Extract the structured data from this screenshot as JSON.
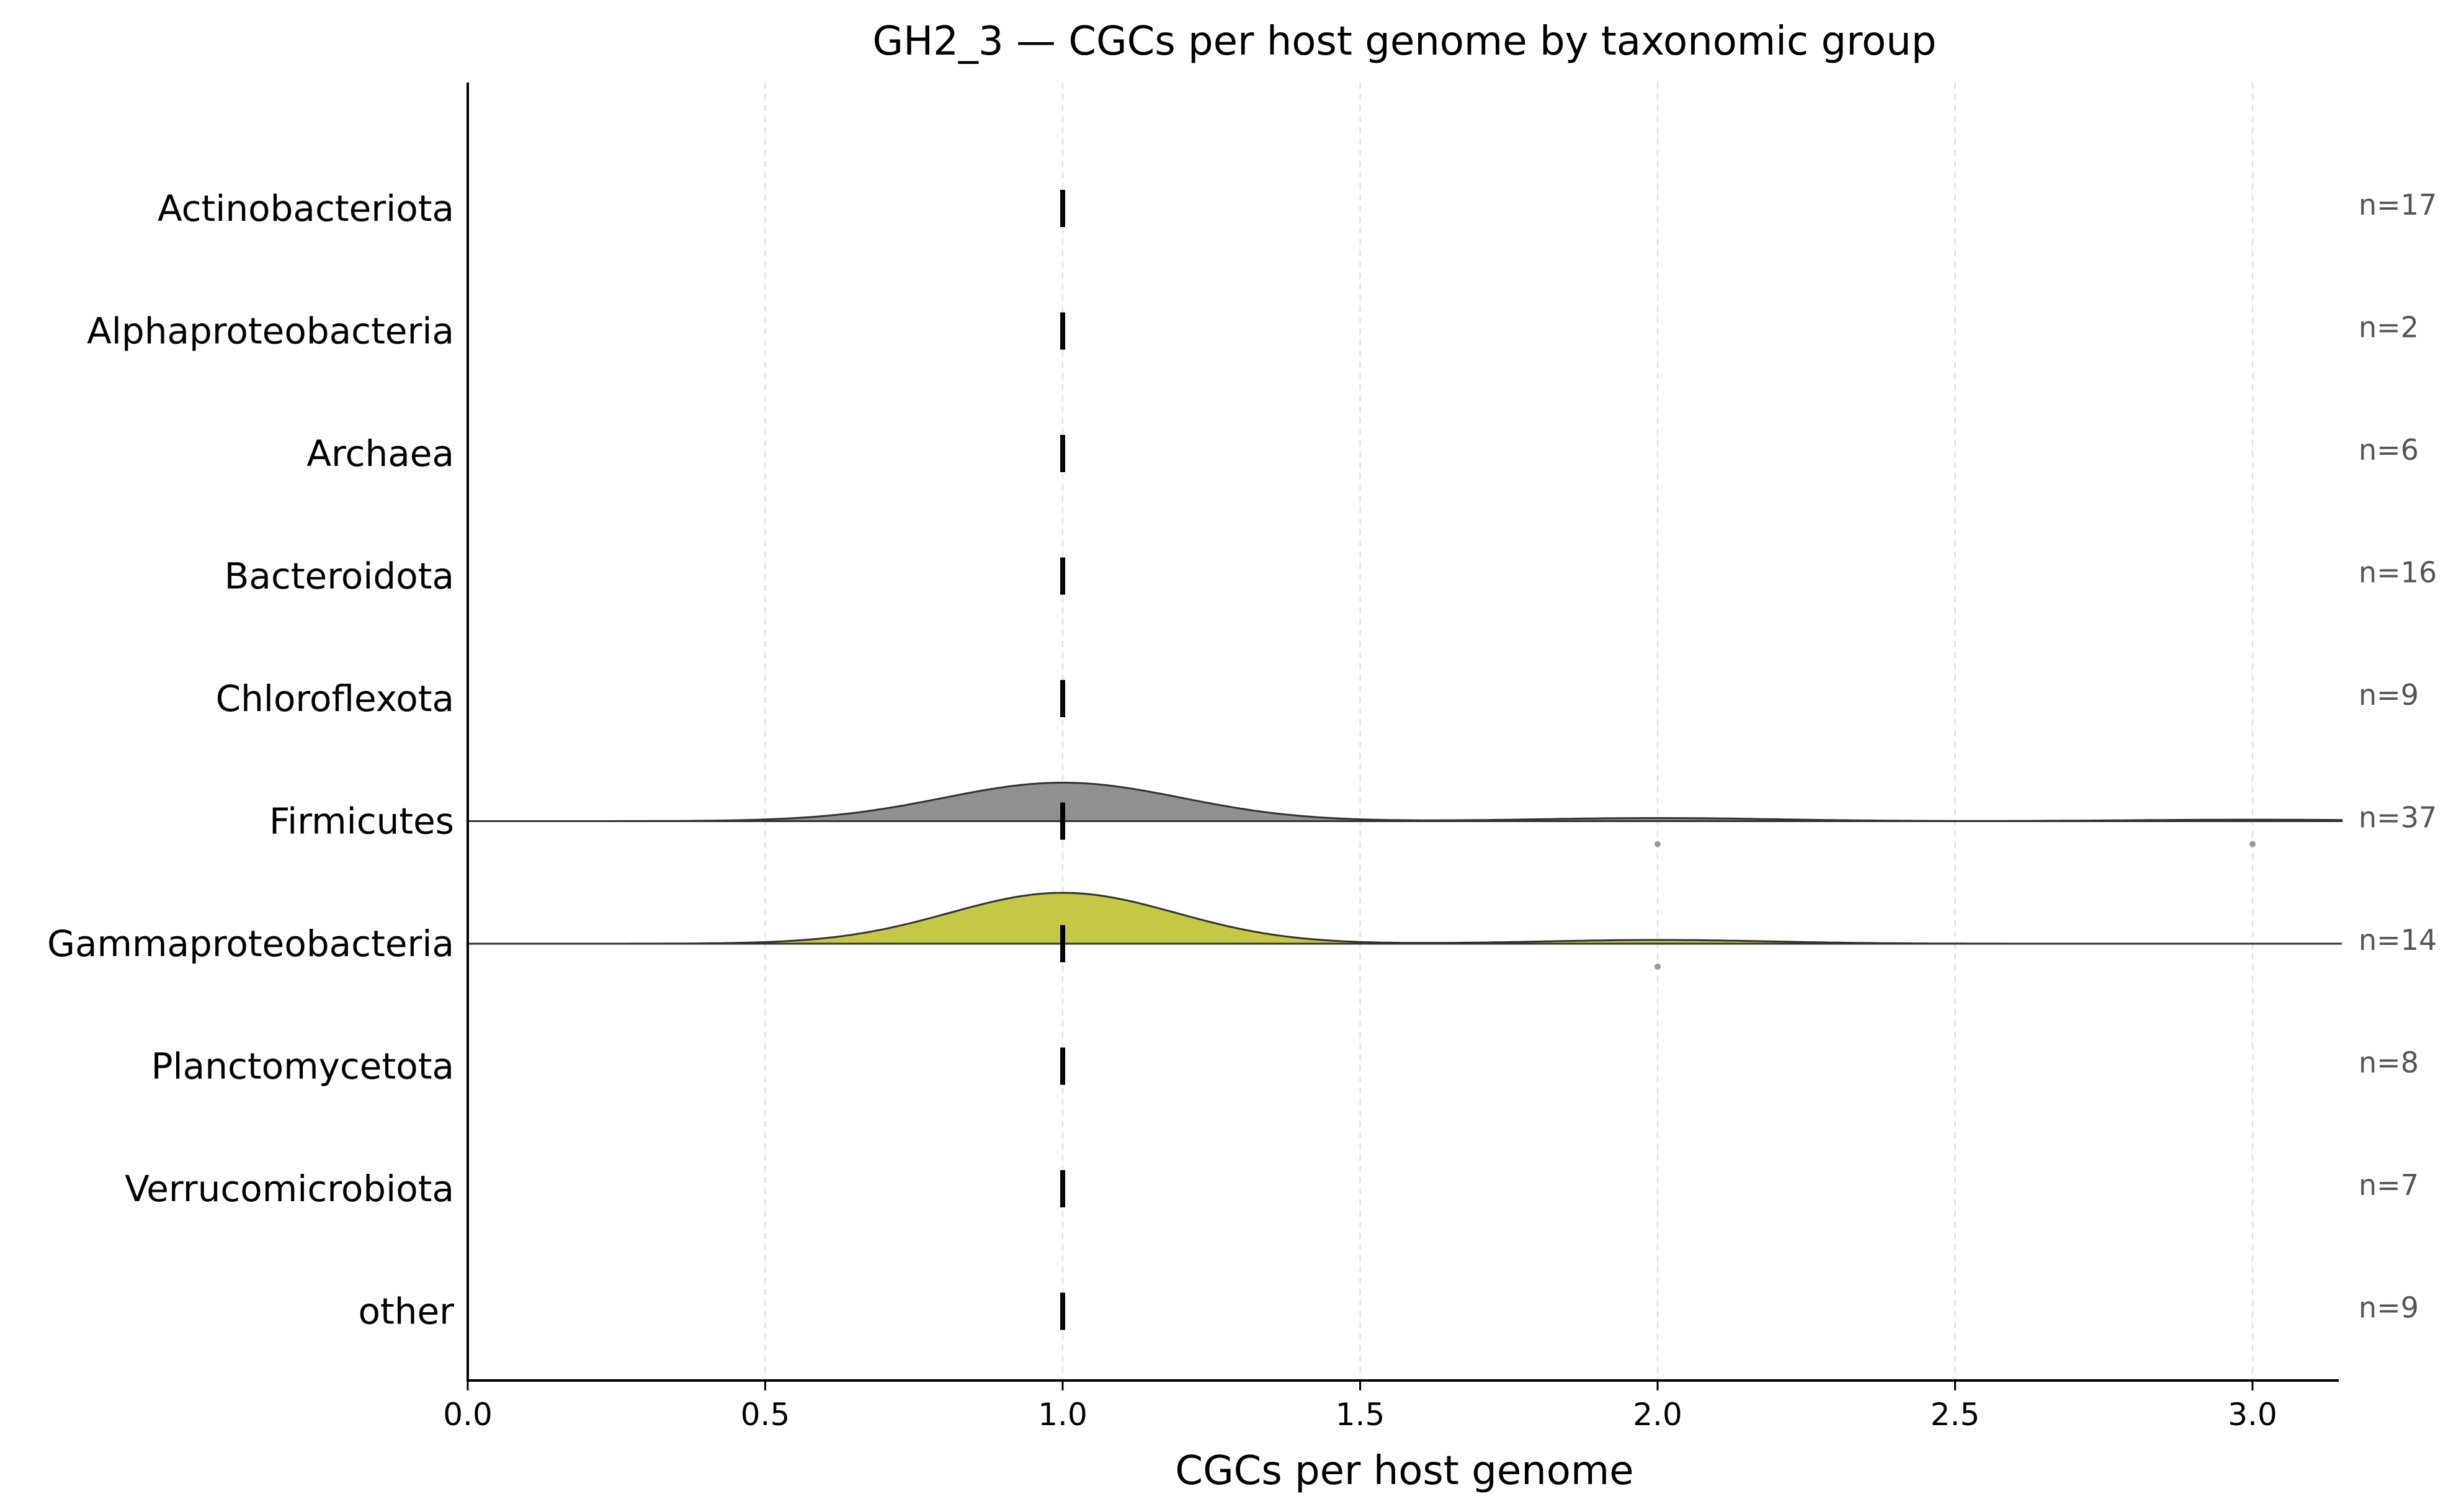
{
  "chart_data": {
    "type": "ridgeline",
    "title": "GH2_3 — CGCs per host genome by taxonomic group",
    "xlabel": "CGCs per host genome",
    "ylabel": "",
    "xlim": [
      0.0,
      3.15
    ],
    "xticks": [
      "0.0",
      "0.5",
      "1.0",
      "1.5",
      "2.0",
      "2.5",
      "3.0"
    ],
    "grid": "vertical-dashed",
    "median_marker": "vertical-bar",
    "groups": [
      {
        "label": "Actinobacteriota",
        "n_label": "n=17",
        "median": 1.0,
        "density": null
      },
      {
        "label": "Alphaproteobacteria",
        "n_label": "n=2",
        "median": 1.0,
        "density": null
      },
      {
        "label": "Archaea",
        "n_label": "n=6",
        "median": 1.0,
        "density": null
      },
      {
        "label": "Bacteroidota",
        "n_label": "n=16",
        "median": 1.0,
        "density": null
      },
      {
        "label": "Chloroflexota",
        "n_label": "n=9",
        "median": 1.0,
        "density": null
      },
      {
        "label": "Firmicutes",
        "n_label": "n=37",
        "median": 1.0,
        "color": "#909090",
        "density": {
          "peaks": [
            {
              "center": 1.0,
              "height": 0.31,
              "sd": 0.2
            },
            {
              "center": 2.0,
              "height": 0.025,
              "sd": 0.2
            },
            {
              "center": 3.0,
              "height": 0.012,
              "sd": 0.2
            }
          ]
        },
        "outliers": [
          2.0,
          3.0
        ]
      },
      {
        "label": "Gammaproteobacteria",
        "n_label": "n=14",
        "median": 1.0,
        "color": "#c6c744",
        "density": {
          "peaks": [
            {
              "center": 1.0,
              "height": 0.41,
              "sd": 0.19
            },
            {
              "center": 2.0,
              "height": 0.03,
              "sd": 0.19
            }
          ]
        },
        "outliers": [
          2.0
        ]
      },
      {
        "label": "Planctomycetota",
        "n_label": "n=8",
        "median": 1.0,
        "density": null
      },
      {
        "label": "Verrucomicrobiota",
        "n_label": "n=7",
        "median": 1.0,
        "density": null
      },
      {
        "label": "other",
        "n_label": "n=9",
        "median": 1.0,
        "density": null
      }
    ]
  }
}
